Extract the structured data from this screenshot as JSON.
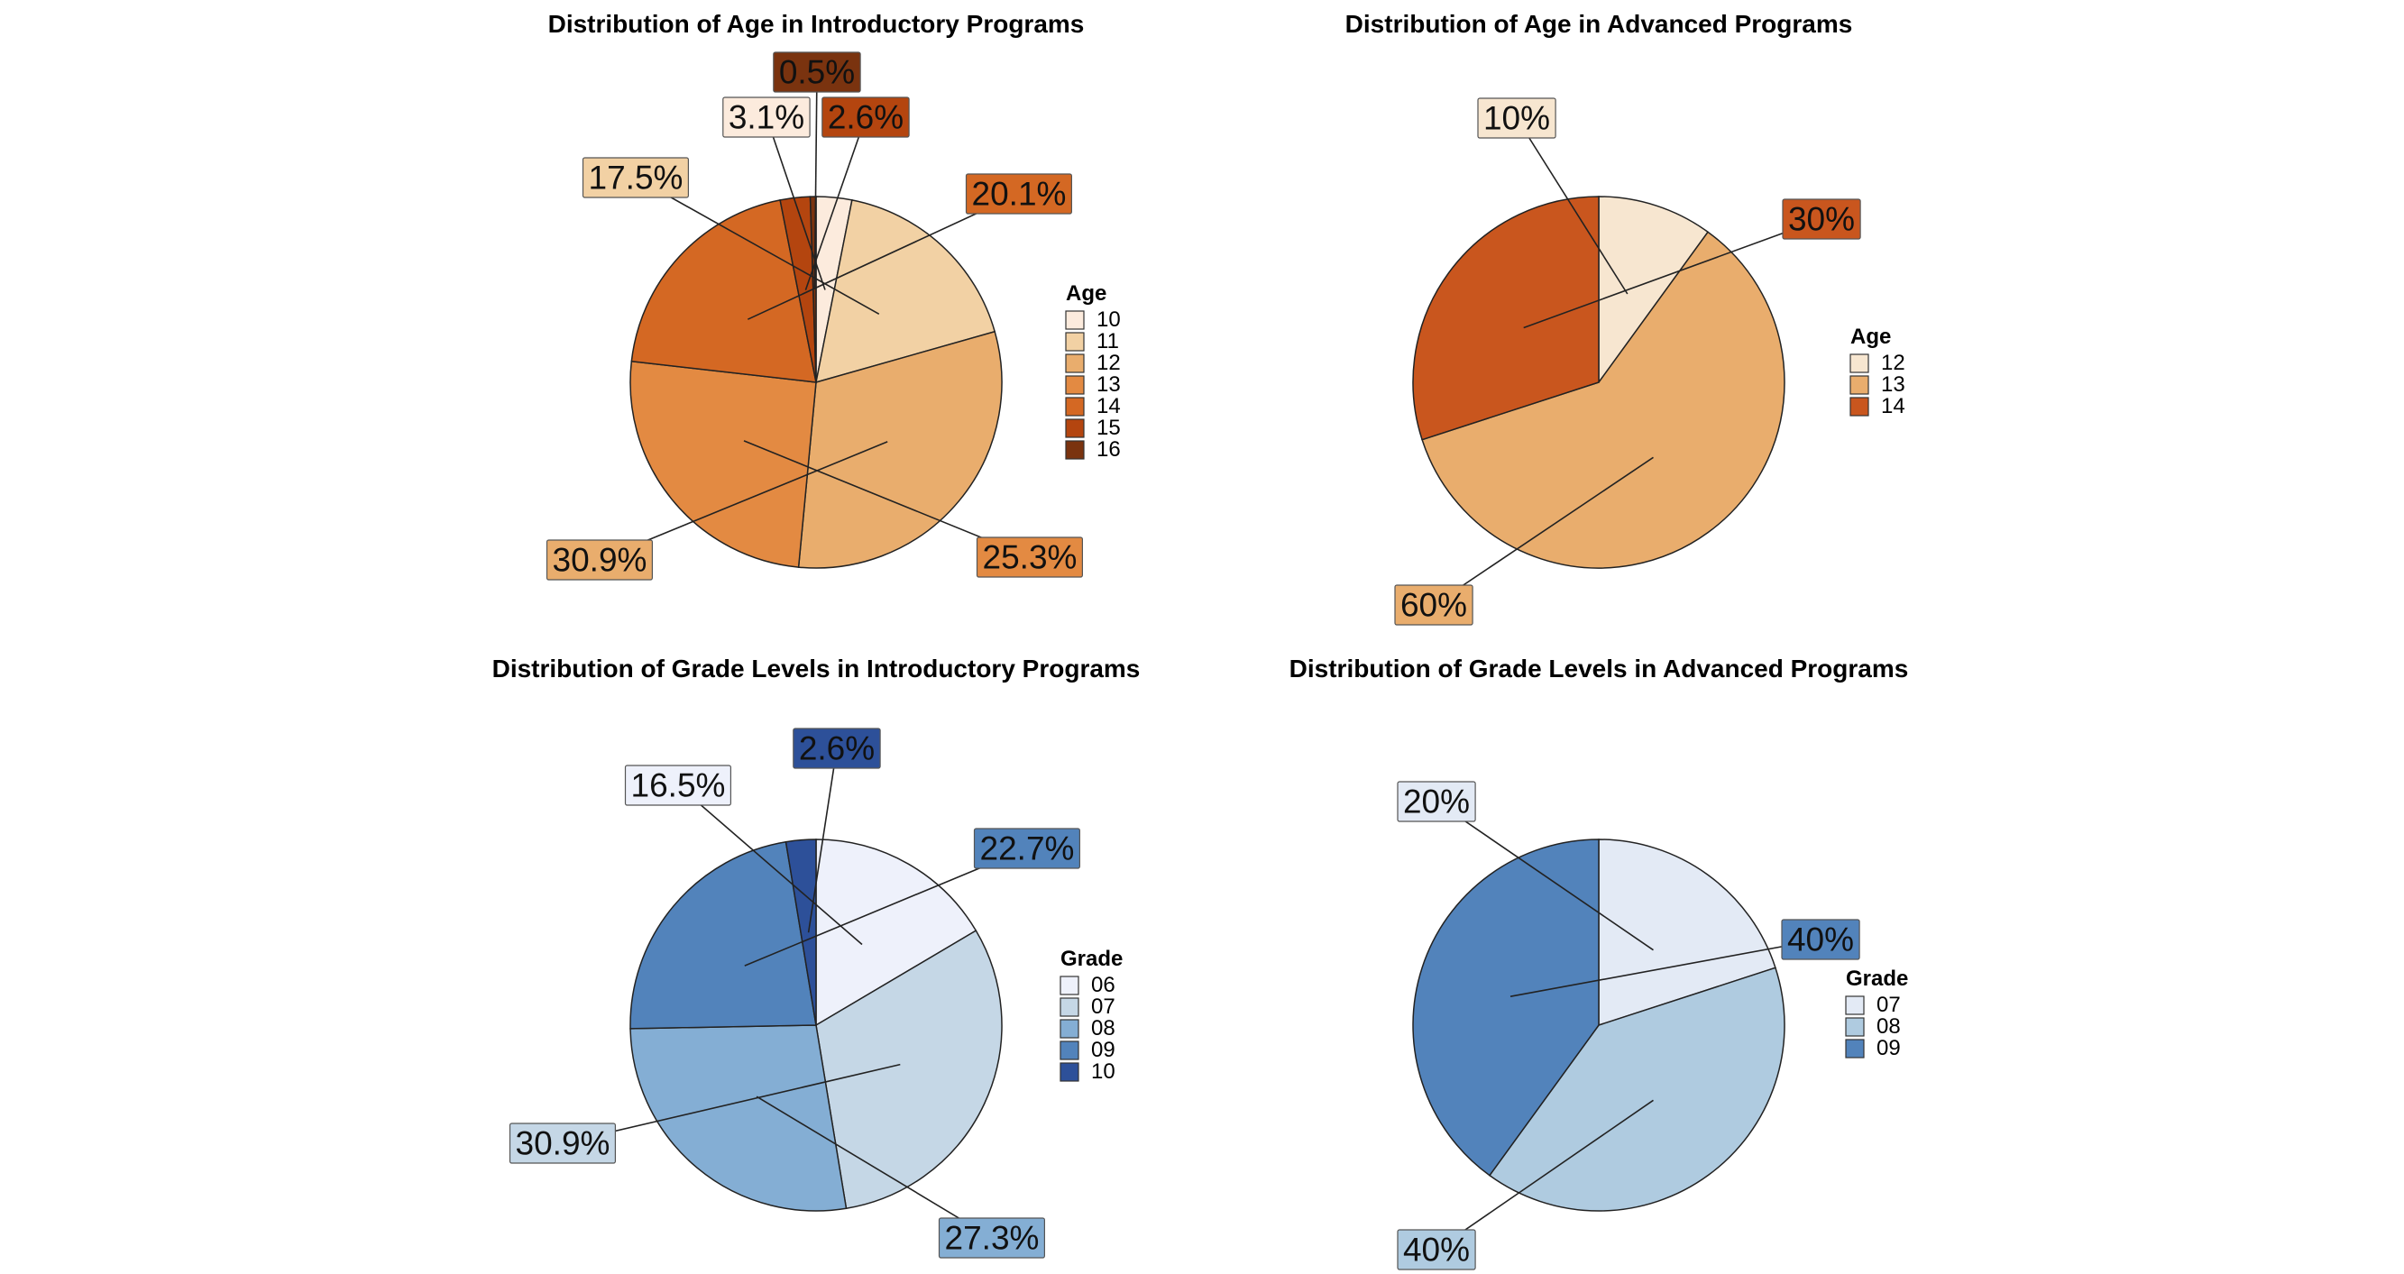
{
  "chart_data": [
    {
      "type": "pie",
      "title": "Distribution of Age in Introductory Programs",
      "legend_title": "Age",
      "legend_placement": "right",
      "categories": [
        "10",
        "11",
        "12",
        "13",
        "14",
        "15",
        "16"
      ],
      "values": [
        3.1,
        17.5,
        30.9,
        25.3,
        20.1,
        2.6,
        0.5
      ],
      "labels": [
        "3.1%",
        "17.5%",
        "30.9%",
        "25.3%",
        "20.1%",
        "2.6%",
        "0.5%"
      ],
      "colors": [
        "#FCEBDD",
        "#F2D1A4",
        "#E9AD6D",
        "#E38A42",
        "#D46823",
        "#B4450F",
        "#7A330F"
      ]
    },
    {
      "type": "pie",
      "title": "Distribution of Age in Advanced Programs",
      "legend_title": "Age",
      "legend_placement": "right",
      "categories": [
        "12",
        "13",
        "14"
      ],
      "values": [
        10,
        60,
        30
      ],
      "labels": [
        "10%",
        "60%",
        "30%"
      ],
      "colors": [
        "#F7E6D0",
        "#E9AD6D",
        "#C9561E"
      ]
    },
    {
      "type": "pie",
      "title": "Distribution of Grade Levels in Introductory Programs",
      "legend_title": "Grade",
      "legend_placement": "right",
      "categories": [
        "06",
        "07",
        "08",
        "09",
        "10"
      ],
      "values": [
        16.5,
        30.9,
        27.3,
        22.7,
        2.6
      ],
      "labels": [
        "16.5%",
        "30.9%",
        "27.3%",
        "22.7%",
        "2.6%"
      ],
      "colors": [
        "#EEF1FB",
        "#C5D7E6",
        "#84AED4",
        "#5283BB",
        "#2D5099"
      ]
    },
    {
      "type": "pie",
      "title": "Distribution of Grade Levels in Advanced Programs",
      "legend_title": "Grade",
      "legend_placement": "right",
      "categories": [
        "07",
        "08",
        "09"
      ],
      "values": [
        20,
        40,
        40
      ],
      "labels": [
        "20%",
        "40%",
        "40%"
      ],
      "colors": [
        "#E3EAF5",
        "#AFCBE0",
        "#5283BB"
      ]
    }
  ]
}
